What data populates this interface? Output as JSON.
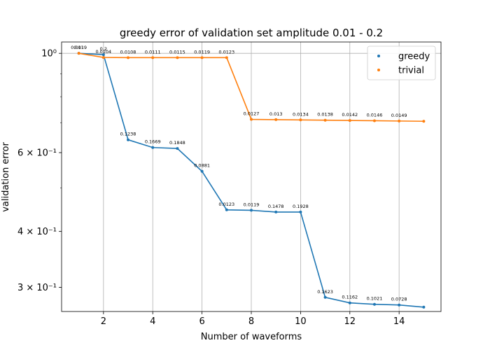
{
  "chart_data": {
    "type": "line",
    "title": "greedy error of validation set amplitude 0.01 - 0.2",
    "xlabel": "Number of waveforms",
    "ylabel": "validation error",
    "yscale": "log",
    "xlim": [
      0.3,
      15.7
    ],
    "ylim": [
      0.265,
      1.06
    ],
    "grid": "x and major y",
    "legend_position": "top-right",
    "x_ticks": [
      2,
      4,
      6,
      8,
      10,
      12,
      14
    ],
    "y_ticks": [
      {
        "value": 1.0,
        "label": "10⁰"
      },
      {
        "value": 0.6,
        "label": "6 × 10⁻¹"
      },
      {
        "value": 0.4,
        "label": "4 × 10⁻¹"
      },
      {
        "value": 0.3,
        "label": "3 × 10⁻¹"
      }
    ],
    "series": [
      {
        "name": "greedy",
        "color": "#1f77b4",
        "x": [
          1,
          2,
          3,
          4,
          5,
          6,
          7,
          8,
          9,
          10,
          11,
          12,
          13,
          14,
          15
        ],
        "y": [
          1.0,
          0.993,
          0.641,
          0.616,
          0.613,
          0.545,
          0.447,
          0.446,
          0.442,
          0.442,
          0.285,
          0.277,
          0.275,
          0.274,
          0.271
        ],
        "labels": [
          "0.01",
          "0.2",
          "0.1238",
          "0.1669",
          "0.1848",
          "0.0881",
          "0.0123",
          "0.0119",
          "0.1478",
          "0.1928",
          "0.1623",
          "0.1162",
          "0.1021",
          "0.0728",
          ""
        ]
      },
      {
        "name": "trivial",
        "color": "#ff7f0e",
        "x": [
          1,
          2,
          3,
          4,
          5,
          6,
          7,
          8,
          9,
          10,
          11,
          12,
          13,
          14,
          15
        ],
        "y": [
          1.0,
          0.979,
          0.978,
          0.978,
          0.978,
          0.978,
          0.978,
          0.712,
          0.711,
          0.71,
          0.709,
          0.708,
          0.707,
          0.706,
          0.705
        ],
        "labels": [
          "0.0119",
          "0.0104",
          "0.0108",
          "0.0111",
          "0.0115",
          "0.0119",
          "0.0123",
          "0.0127",
          "0.013",
          "0.0134",
          "0.0138",
          "0.0142",
          "0.0146",
          "0.0149",
          ""
        ]
      }
    ]
  }
}
